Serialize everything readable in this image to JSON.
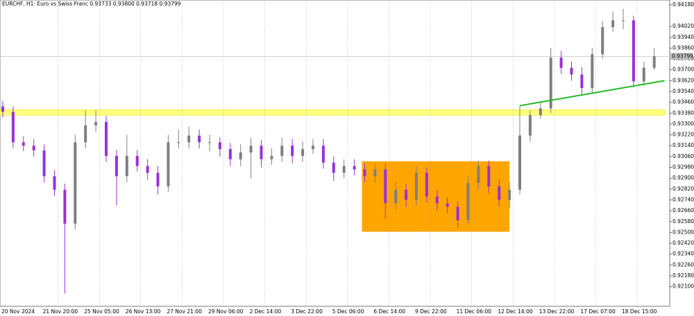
{
  "chart_data": {
    "type": "candlestick",
    "title": "EURCHF, H1:  Euro vs Swiss Franc  0.93733 0.93800 0.93718 0.93799",
    "categories": [
      "20 Nov 2024",
      null,
      null,
      null,
      "21 Nov 20:00",
      null,
      null,
      null,
      "25 Nov 05:00",
      null,
      null,
      null,
      "26 Nov 13:00",
      null,
      null,
      null,
      "27 Nov 21:00",
      null,
      null,
      null,
      "29 Nov 06:00",
      null,
      null,
      null,
      "2 Dec 14:00",
      null,
      null,
      null,
      "3 Dec 22:00",
      null,
      null,
      null,
      "5 Dec 06:00",
      null,
      null,
      null,
      "6 Dec 14:00",
      null,
      null,
      null,
      "9 Dec 22:00",
      null,
      null,
      null,
      "11 Dec 06:00",
      null,
      null,
      null,
      "12 Dec 14:00",
      null,
      null,
      null,
      "13 Dec 22:00",
      null,
      null,
      null,
      "17 Dec 07:00",
      null,
      null,
      null,
      "18 Dec 15:00",
      null,
      null,
      null
    ],
    "open": [
      0.9343,
      0.9339,
      0.93165,
      0.9314,
      0.93105,
      0.92915,
      0.92815,
      0.92565,
      0.93165,
      0.9329,
      0.93315,
      0.93065,
      0.92915,
      0.93065,
      0.9299,
      0.9294,
      0.9284,
      0.93165,
      0.93165,
      0.93215,
      0.93165,
      0.93165,
      0.93115,
      0.9304,
      0.9309,
      0.9314,
      0.9304,
      0.93065,
      0.9314,
      0.93065,
      0.93115,
      0.9314,
      0.93015,
      0.9294,
      0.9299,
      0.92965,
      0.92915,
      0.92965,
      0.92715,
      0.92815,
      0.9274,
      0.9294,
      0.92765,
      0.92715,
      0.9269,
      0.9259,
      0.92865,
      0.9299,
      0.9284,
      0.9274,
      0.92815,
      0.93215,
      0.93365,
      0.93415,
      0.9379,
      0.93715,
      0.93665,
      0.93565,
      0.93815,
      0.94015,
      0.94065,
      0.94065,
      0.93615,
      0.93715
    ],
    "high": [
      0.9347,
      0.9343,
      0.9321,
      0.9319,
      0.9315,
      0.9296,
      0.9286,
      0.9322,
      0.934,
      0.934,
      0.9336,
      0.9311,
      0.9322,
      0.9311,
      0.9304,
      0.9299,
      0.9322,
      0.9326,
      0.9328,
      0.9326,
      0.9322,
      0.932,
      0.9316,
      0.9315,
      0.932,
      0.9318,
      0.9312,
      0.932,
      0.9319,
      0.9317,
      0.9319,
      0.9319,
      0.9306,
      0.9304,
      0.9304,
      0.9301,
      0.9301,
      0.9301,
      0.9287,
      0.9286,
      0.9299,
      0.9298,
      0.9281,
      0.9276,
      0.9273,
      0.9292,
      0.9303,
      0.9303,
      0.9289,
      0.9287,
      0.9343,
      0.934,
      0.9346,
      0.9386,
      0.9384,
      0.9376,
      0.9372,
      0.9386,
      0.9406,
      0.9413,
      0.9415,
      0.941,
      0.9376,
      0.9386
    ],
    "low": [
      0.9335,
      0.9312,
      0.931,
      0.9306,
      0.9287,
      0.9277,
      0.9205,
      0.9252,
      0.9312,
      0.9324,
      0.9302,
      0.927,
      0.9287,
      0.9295,
      0.9289,
      0.9278,
      0.928,
      0.9312,
      0.9312,
      0.9312,
      0.931,
      0.9306,
      0.9299,
      0.9299,
      0.929,
      0.9298,
      0.93,
      0.9302,
      0.9301,
      0.9302,
      0.9308,
      0.9297,
      0.9288,
      0.929,
      0.9292,
      0.9287,
      0.9287,
      0.926,
      0.9267,
      0.9269,
      0.927,
      0.9272,
      0.9266,
      0.9264,
      0.9254,
      0.9256,
      0.9282,
      0.9279,
      0.9269,
      0.9268,
      0.9278,
      0.9317,
      0.9334,
      0.9338,
      0.9367,
      0.9362,
      0.9352,
      0.9353,
      0.9378,
      0.9398,
      0.94,
      0.9357,
      0.9358,
      0.937
    ],
    "close": [
      0.9339,
      0.93165,
      0.9314,
      0.93105,
      0.92915,
      0.92815,
      0.92565,
      0.93165,
      0.9329,
      0.93315,
      0.93065,
      0.92915,
      0.93065,
      0.9299,
      0.9294,
      0.9284,
      0.93165,
      0.93165,
      0.93215,
      0.93165,
      0.93165,
      0.93115,
      0.9304,
      0.9309,
      0.9314,
      0.9304,
      0.93065,
      0.9314,
      0.93065,
      0.93115,
      0.9314,
      0.93015,
      0.9294,
      0.9299,
      0.92965,
      0.92915,
      0.92965,
      0.92715,
      0.92815,
      0.9274,
      0.9294,
      0.92765,
      0.92715,
      0.9269,
      0.9259,
      0.92865,
      0.9299,
      0.9284,
      0.9274,
      0.92815,
      0.93215,
      0.93365,
      0.93415,
      0.9379,
      0.93715,
      0.93665,
      0.93565,
      0.93815,
      0.94015,
      0.94065,
      0.94065,
      0.93615,
      0.93715,
      0.93799
    ],
    "up_color": "#7f7f7f",
    "down_color": "#9b30d9",
    "ylim": [
      0.91955,
      0.94215
    ],
    "yticks": [
      {
        "value": 0.9418,
        "label": "0.94180"
      },
      {
        "value": 0.9402,
        "label": "0.94020"
      },
      {
        "value": 0.9394,
        "label": "0.93940"
      },
      {
        "value": 0.9386,
        "label": "0.93860"
      },
      {
        "value": 0.9378,
        "label": "0.93780"
      },
      {
        "value": 0.937,
        "label": "0.93700"
      },
      {
        "value": 0.9362,
        "label": "0.93620"
      },
      {
        "value": 0.9354,
        "label": "0.93540"
      },
      {
        "value": 0.9346,
        "label": "0.93460"
      },
      {
        "value": 0.9338,
        "label": "0.93380"
      },
      {
        "value": 0.933,
        "label": "0.93300"
      },
      {
        "value": 0.9322,
        "label": "0.93220"
      },
      {
        "value": 0.9314,
        "label": "0.93140"
      },
      {
        "value": 0.9306,
        "label": "0.93060"
      },
      {
        "value": 0.9298,
        "label": "0.92980"
      },
      {
        "value": 0.929,
        "label": "0.92900"
      },
      {
        "value": 0.9282,
        "label": "0.92820"
      },
      {
        "value": 0.9274,
        "label": "0.92740"
      },
      {
        "value": 0.9266,
        "label": "0.92660"
      },
      {
        "value": 0.9258,
        "label": "0.92580"
      },
      {
        "value": 0.925,
        "label": "0.92500"
      },
      {
        "value": 0.9242,
        "label": "0.92420"
      },
      {
        "value": 0.9234,
        "label": "0.92340"
      },
      {
        "value": 0.9226,
        "label": "0.92260"
      },
      {
        "value": 0.9218,
        "label": "0.92180"
      },
      {
        "value": 0.921,
        "label": "0.92100"
      }
    ],
    "grid": true,
    "bid": {
      "value": 0.93799,
      "label": "0.93799"
    },
    "zones": [
      {
        "color": "#ffa500",
        "x_range": [
          35,
          49
        ],
        "y_range": [
          0.92505,
          0.93025
        ]
      },
      {
        "color": "#ffff80",
        "x_range": [
          0,
          64
        ],
        "y_range": [
          0.93365,
          0.93405
        ]
      }
    ],
    "trendline": {
      "color": "#22bb22",
      "x": [
        50,
        64
      ],
      "y": [
        0.93435,
        0.9362
      ]
    }
  }
}
